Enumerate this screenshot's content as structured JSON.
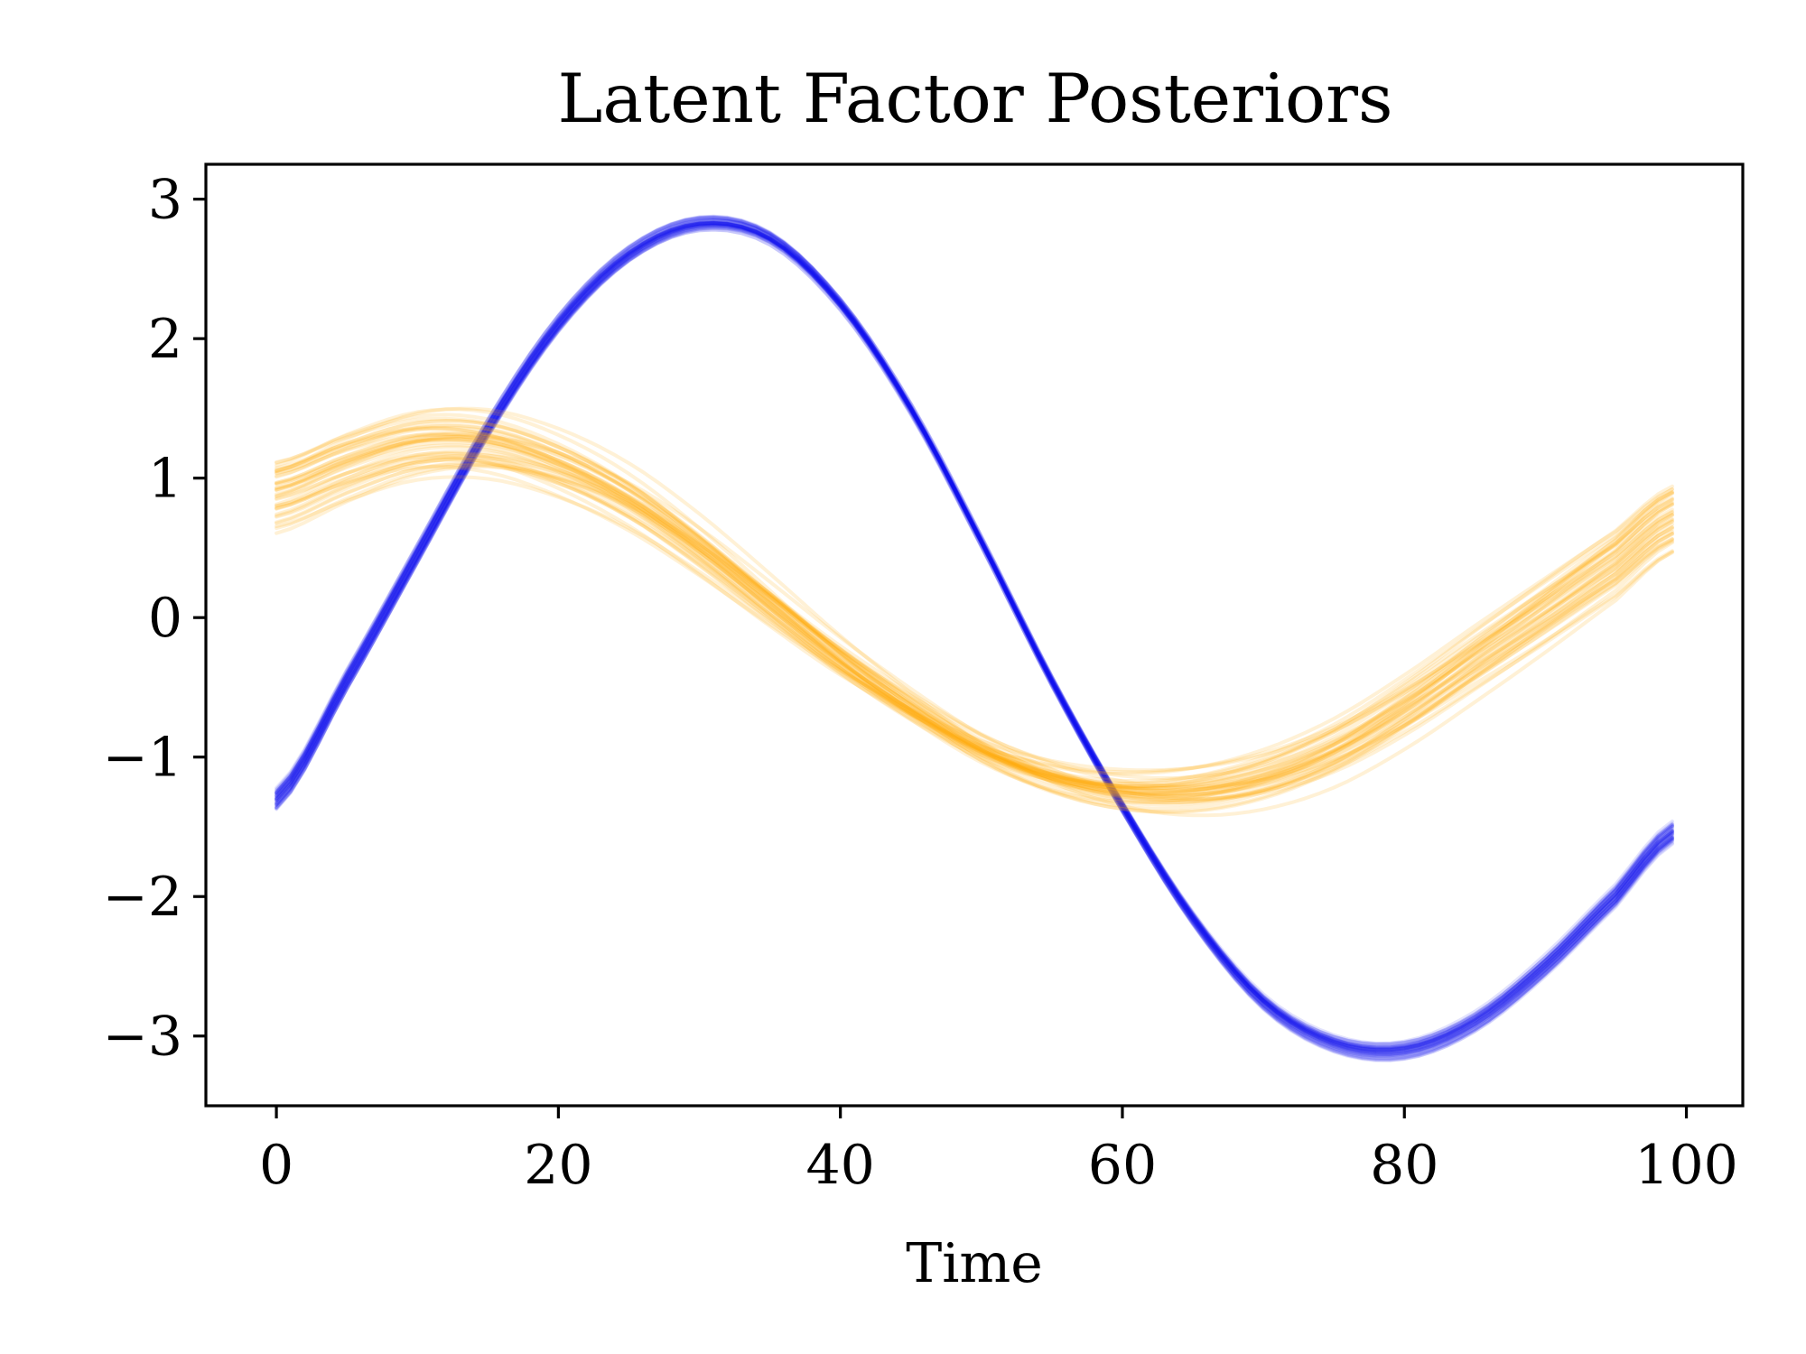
{
  "chart_data": {
    "type": "line",
    "title": "Latent Factor Posteriors",
    "xlabel": "Time",
    "ylabel": "",
    "xlim": [
      -5,
      104
    ],
    "ylim": [
      -3.5,
      3.25
    ],
    "x_ticks": [
      0,
      20,
      40,
      60,
      80,
      100
    ],
    "x_tick_labels": [
      "0",
      "20",
      "40",
      "60",
      "80",
      "100"
    ],
    "y_ticks": [
      3,
      2,
      1,
      0,
      -1,
      -2,
      -3
    ],
    "y_tick_labels": [
      "3",
      "2",
      "1",
      "0",
      "−1",
      "−2",
      "−3"
    ],
    "grid": false,
    "legend": "none",
    "x_range": [
      0,
      99
    ],
    "series": [
      {
        "color": "#1010f0",
        "opacity": 0.12,
        "mean": {
          "x": [
            0,
            5,
            10,
            15,
            20,
            25,
            30,
            35,
            40,
            45,
            50,
            55,
            60,
            65,
            70,
            75,
            80,
            85,
            90,
            95,
            99
          ],
          "y": [
            -1.3,
            -0.45,
            0.45,
            1.35,
            2.1,
            2.6,
            2.82,
            2.72,
            2.25,
            1.5,
            0.55,
            -0.45,
            -1.35,
            -2.15,
            -2.75,
            -3.05,
            -3.1,
            -2.9,
            -2.5,
            -2.0,
            -1.55
          ]
        },
        "sample_count": 40,
        "spread": 0.08
      },
      {
        "color": "#ffa500",
        "opacity": 0.16,
        "mean": {
          "x": [
            0,
            5,
            10,
            15,
            20,
            25,
            30,
            35,
            40,
            45,
            50,
            55,
            60,
            65,
            70,
            75,
            80,
            85,
            90,
            95,
            99
          ],
          "y": [
            0.9,
            1.1,
            1.25,
            1.25,
            1.1,
            0.85,
            0.5,
            0.1,
            -0.3,
            -0.65,
            -0.95,
            -1.15,
            -1.25,
            -1.25,
            -1.15,
            -0.95,
            -0.65,
            -0.3,
            0.05,
            0.4,
            0.72
          ]
        },
        "sample_count": 40,
        "spread": 0.22
      }
    ]
  }
}
